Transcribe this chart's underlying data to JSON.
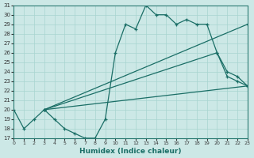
{
  "xlabel": "Humidex (Indice chaleur)",
  "xlim": [
    0,
    23
  ],
  "ylim": [
    17,
    31
  ],
  "xticks": [
    0,
    1,
    2,
    3,
    4,
    5,
    6,
    7,
    8,
    9,
    10,
    11,
    12,
    13,
    14,
    15,
    16,
    17,
    18,
    19,
    20,
    21,
    22,
    23
  ],
  "yticks": [
    17,
    18,
    19,
    20,
    21,
    22,
    23,
    24,
    25,
    26,
    27,
    28,
    29,
    30,
    31
  ],
  "background_color": "#cce8e6",
  "line_color": "#1a6e66",
  "grid_color": "#a8d4d0",
  "lines": [
    {
      "x": [
        0,
        1,
        2,
        3,
        4,
        5,
        6,
        7,
        8,
        9,
        10,
        11,
        12,
        13,
        14,
        15,
        16,
        17,
        18,
        19,
        20,
        21,
        22,
        23
      ],
      "y": [
        20,
        18,
        19,
        20,
        19,
        18,
        17.5,
        17,
        17,
        19,
        26,
        29,
        28.5,
        31,
        30,
        30,
        29,
        29.5,
        29,
        29,
        26,
        23.5,
        23,
        22.5
      ],
      "marker": true
    },
    {
      "x": [
        3,
        23
      ],
      "y": [
        20,
        29
      ],
      "marker": true
    },
    {
      "x": [
        3,
        20,
        21,
        22,
        23
      ],
      "y": [
        20,
        26,
        24,
        23.5,
        22.5
      ],
      "marker": true
    },
    {
      "x": [
        3,
        23
      ],
      "y": [
        20,
        22.5
      ],
      "marker": true
    }
  ]
}
